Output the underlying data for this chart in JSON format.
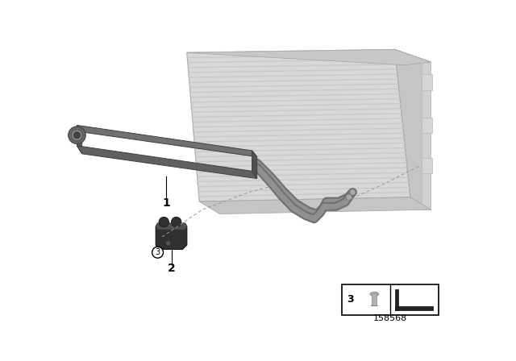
{
  "bg_color": "#ffffff",
  "part_number": "158568",
  "label1": "1",
  "label2": "2",
  "label3": "3",
  "rad_face_color": "#d8d8d8",
  "rad_stripe_color": "#c8c8c8",
  "rad_side_color": "#c0c0c0",
  "rad_frame_color": "#b8b8b8",
  "cooler_top_color": "#707070",
  "cooler_face_color": "#606060",
  "cooler_end_color": "#505050",
  "cooler_bot_color": "#555555",
  "hose_color": "#909090",
  "hose_dark": "#707070",
  "grommet_color": "#303030",
  "grommet_hi": "#505050",
  "line_color": "#000000",
  "dash_color": "#999999"
}
